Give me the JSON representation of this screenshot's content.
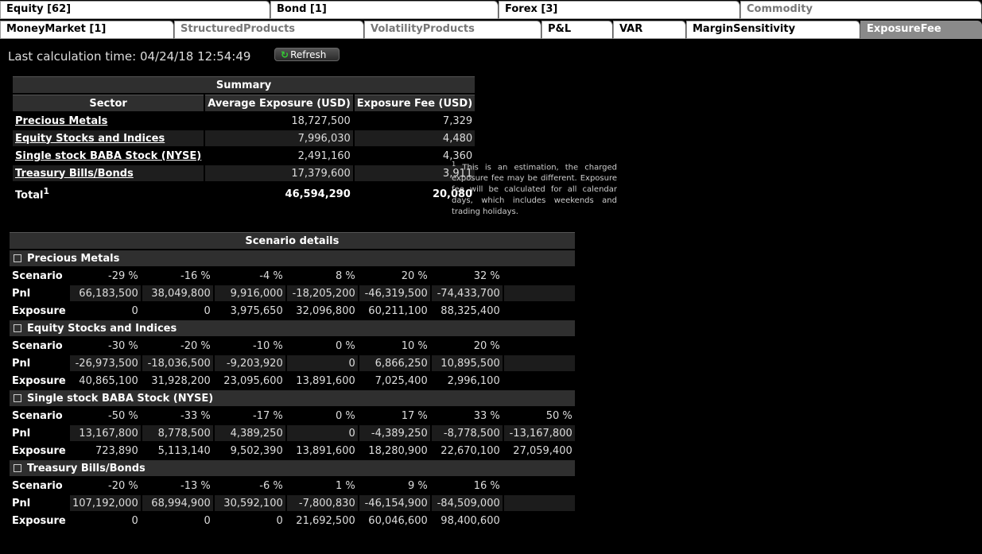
{
  "tabs_row1": [
    {
      "label": "Equity [62]",
      "state": "normal"
    },
    {
      "label": "Bond [1]",
      "state": "normal"
    },
    {
      "label": "Forex [3]",
      "state": "normal"
    },
    {
      "label": "Commodity",
      "state": "inactive"
    }
  ],
  "tabs_row2": [
    {
      "label": "MoneyMarket [1]",
      "state": "normal"
    },
    {
      "label": "StructuredProducts",
      "state": "inactive"
    },
    {
      "label": "VolatilityProducts",
      "state": "inactive"
    },
    {
      "label": "P&L",
      "state": "normal"
    },
    {
      "label": "VAR",
      "state": "normal"
    },
    {
      "label": "MarginSensitivity",
      "state": "normal"
    },
    {
      "label": "ExposureFee",
      "state": "active"
    }
  ],
  "calc_time": "Last calculation time: 04/24/18 12:54:49",
  "refresh_label": "Refresh",
  "summary": {
    "title": "Summary",
    "headers": [
      "Sector",
      "Average Exposure (USD)",
      "Exposure Fee (USD)"
    ],
    "rows": [
      {
        "sector": "Precious Metals",
        "avg": "18,727,500",
        "fee": "7,329"
      },
      {
        "sector": "Equity Stocks and Indices",
        "avg": "7,996,030",
        "fee": "4,480"
      },
      {
        "sector": "Single stock BABA Stock (NYSE)",
        "avg": "2,491,160",
        "fee": "4,360"
      },
      {
        "sector": "Treasury Bills/Bonds",
        "avg": "17,379,600",
        "fee": "3,911"
      }
    ],
    "total_label": "Total",
    "total_sup": "1",
    "total_avg": "46,594,290",
    "total_fee": "20,080"
  },
  "note_sup": "1",
  "note": "This is an estimation, the charged exposure fee may be different. Exposure fee will be calculated for all calendar days, which includes weekends and trading holidays.",
  "scenario": {
    "title": "Scenario details",
    "labels": {
      "scenario": "Scenario",
      "pnl": "Pnl",
      "exposure": "Exposure"
    },
    "sections": [
      {
        "name": "Precious Metals",
        "scenario": [
          "-29 %",
          "-16 %",
          "-4 %",
          "8 %",
          "20 %",
          "32 %",
          ""
        ],
        "pnl": [
          "66,183,500",
          "38,049,800",
          "9,916,000",
          "-18,205,200",
          "-46,319,500",
          "-74,433,700",
          ""
        ],
        "exposure": [
          "0",
          "0",
          "3,975,650",
          "32,096,800",
          "60,211,100",
          "88,325,400",
          ""
        ]
      },
      {
        "name": "Equity Stocks and Indices",
        "scenario": [
          "-30 %",
          "-20 %",
          "-10 %",
          "0 %",
          "10 %",
          "20 %",
          ""
        ],
        "pnl": [
          "-26,973,500",
          "-18,036,500",
          "-9,203,920",
          "0",
          "6,866,250",
          "10,895,500",
          ""
        ],
        "exposure": [
          "40,865,100",
          "31,928,200",
          "23,095,600",
          "13,891,600",
          "7,025,400",
          "2,996,100",
          ""
        ]
      },
      {
        "name": "Single stock BABA Stock (NYSE)",
        "scenario": [
          "-50 %",
          "-33 %",
          "-17 %",
          "0 %",
          "17 %",
          "33 %",
          "50 %"
        ],
        "pnl": [
          "13,167,800",
          "8,778,500",
          "4,389,250",
          "0",
          "-4,389,250",
          "-8,778,500",
          "-13,167,800"
        ],
        "exposure": [
          "723,890",
          "5,113,140",
          "9,502,390",
          "13,891,600",
          "18,280,900",
          "22,670,100",
          "27,059,400"
        ]
      },
      {
        "name": "Treasury Bills/Bonds",
        "scenario": [
          "-20 %",
          "-13 %",
          "-6 %",
          "1 %",
          "9 %",
          "16 %",
          ""
        ],
        "pnl": [
          "107,192,000",
          "68,994,900",
          "30,592,100",
          "-7,800,830",
          "-46,154,900",
          "-84,509,000",
          ""
        ],
        "exposure": [
          "0",
          "0",
          "0",
          "21,692,500",
          "60,046,600",
          "98,400,600",
          ""
        ]
      }
    ]
  }
}
